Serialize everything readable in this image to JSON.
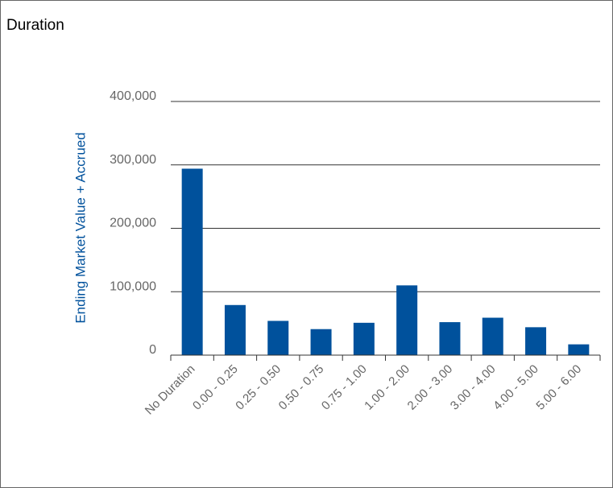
{
  "chart_data": {
    "type": "bar",
    "title": "Duration",
    "xlabel": "",
    "ylabel": "Ending Market Value + Accrued",
    "categories": [
      "No Duration",
      "0.00 - 0.25",
      "0.25 - 0.50",
      "0.50 - 0.75",
      "0.75 - 1.00",
      "1.00 - 2.00",
      "2.00 - 3.00",
      "3.00 - 4.00",
      "4.00 - 5.00",
      "5.00 - 6.00"
    ],
    "values": [
      294000,
      79000,
      54000,
      41000,
      51000,
      110000,
      52000,
      59000,
      44000,
      17000
    ],
    "ylim": [
      0,
      400000
    ],
    "yticks": [
      0,
      100000,
      200000,
      300000,
      400000
    ],
    "ytick_labels": [
      "0",
      "100,000",
      "200,000",
      "300,000",
      "400,000"
    ],
    "grid": true,
    "legend": "none",
    "colors": {
      "bar": "#00519c",
      "axis_title": "#00519c",
      "grid": "#333333",
      "tick_text": "#666666"
    }
  }
}
